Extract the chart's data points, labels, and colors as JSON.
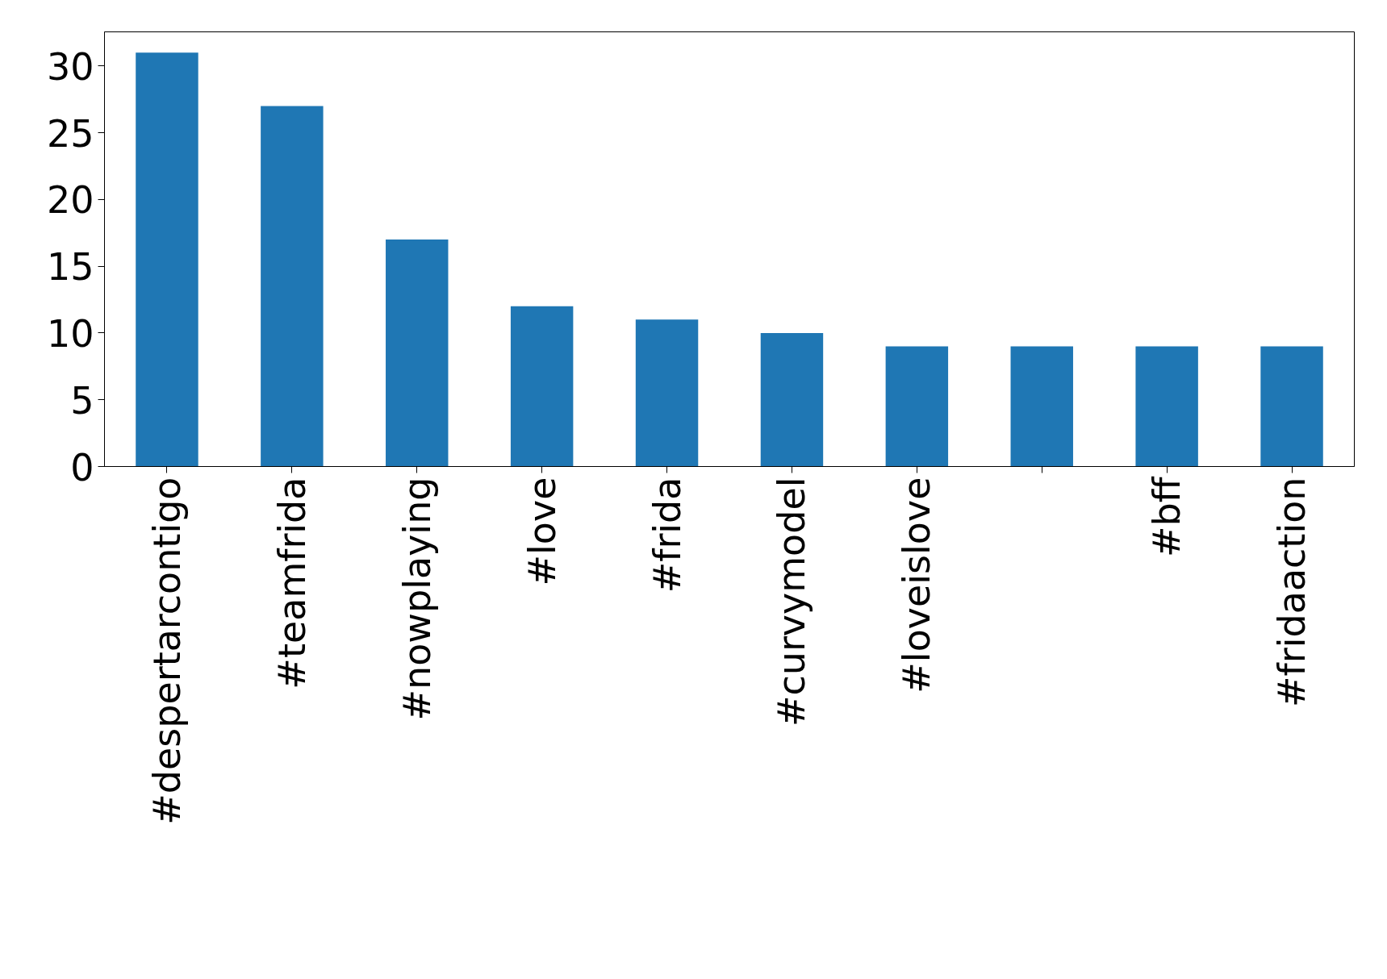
{
  "chart_data": {
    "type": "bar",
    "categories": [
      "#despertarcontigo",
      "#teamfrida",
      "#nowplaying",
      "#love",
      "#frida",
      "#curvymodel",
      "#loveislove",
      null,
      "#bff",
      "#fridaaction"
    ],
    "values": [
      31,
      27,
      17,
      12,
      11,
      10,
      9,
      9,
      9,
      9
    ],
    "color": "#1f77b4",
    "ylim": [
      0,
      32.55
    ],
    "yticks": [
      0,
      5,
      10,
      15,
      20,
      25,
      30
    ],
    "grid": false
  }
}
